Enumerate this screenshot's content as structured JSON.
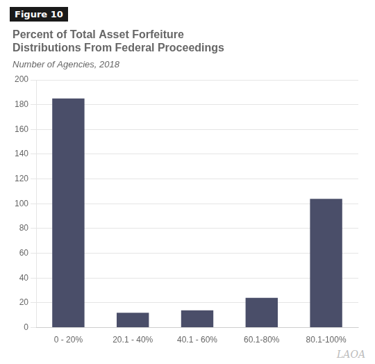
{
  "chart_data": {
    "type": "bar",
    "title": [
      "Percent of Total Asset Forfeiture",
      "Distributions From Federal Proceedings"
    ],
    "subtitle": "Number of Agencies, 2018",
    "annotations": [
      "Figure 10",
      "LAOA"
    ],
    "categories": [
      "0 - 20%",
      "20.1 - 40%",
      "40.1 - 60%",
      "60.1-80%",
      "80.1-100%"
    ],
    "values": [
      185,
      12,
      14,
      24,
      104
    ],
    "color": "#4a4e69",
    "ylim": [
      0,
      200
    ],
    "yticks": [
      0,
      20,
      40,
      60,
      80,
      100,
      120,
      140,
      160,
      180,
      200
    ],
    "grid": true
  }
}
